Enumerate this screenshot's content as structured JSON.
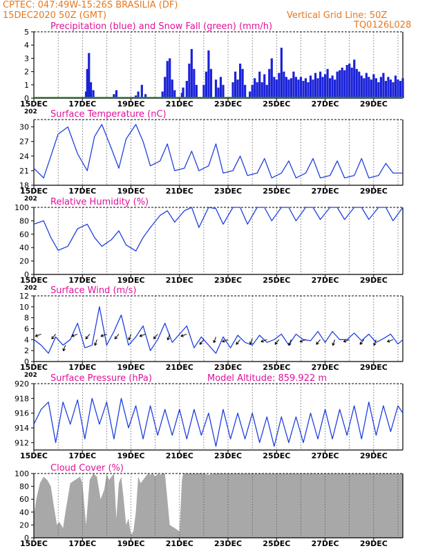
{
  "header": {
    "line1_left": "CPTEC:   047:49W-15:26S   BRASILIA (DF)",
    "line2_left": "15DEC2020 50Z (GMT)",
    "line2_right": "Vertical Grid Line: 50Z",
    "line3_right": "TQ0126L028"
  },
  "colors": {
    "header_text": "#e8771c",
    "panel_title": "#e0109a",
    "series_line": "#1f3fe0",
    "precip_bar": "#1a22d8",
    "snow_bar": "#1a9a1a",
    "cloud_fill": "#a8a8a8"
  },
  "x_axis": {
    "tick_labels": [
      "15DEC",
      "17DEC",
      "19DEC",
      "21DEC",
      "23DEC",
      "25DEC",
      "27DEC",
      "29DEC"
    ],
    "truncated_year": "202"
  },
  "chart_data": [
    {
      "type": "bar",
      "name": "precipitation",
      "title": "Precipitation (blue) and Snow Fall (green) (mm/h)",
      "ylim": [
        0,
        5
      ],
      "yticks": [
        0,
        1,
        2,
        3,
        4,
        5
      ],
      "x": "days since 15DEC 00Z",
      "bars": [
        [
          2.15,
          0.5
        ],
        [
          2.2,
          2.2
        ],
        [
          2.27,
          3.4
        ],
        [
          2.35,
          1.2
        ],
        [
          2.45,
          0.6
        ],
        [
          3.3,
          0.3
        ],
        [
          3.4,
          0.6
        ],
        [
          4.2,
          0.2
        ],
        [
          4.3,
          0.5
        ],
        [
          4.45,
          1.0
        ],
        [
          4.6,
          0.3
        ],
        [
          5.3,
          0.5
        ],
        [
          5.4,
          1.6
        ],
        [
          5.5,
          2.8
        ],
        [
          5.6,
          3.0
        ],
        [
          5.7,
          1.4
        ],
        [
          5.8,
          0.6
        ],
        [
          6.1,
          0.4
        ],
        [
          6.15,
          0.8
        ],
        [
          6.3,
          1.3
        ],
        [
          6.4,
          2.6
        ],
        [
          6.5,
          3.7
        ],
        [
          6.6,
          2.2
        ],
        [
          6.7,
          1.0
        ],
        [
          7.0,
          1.0
        ],
        [
          7.1,
          2.0
        ],
        [
          7.2,
          3.6
        ],
        [
          7.3,
          2.2
        ],
        [
          7.5,
          1.4
        ],
        [
          7.6,
          0.8
        ],
        [
          7.7,
          1.6
        ],
        [
          7.8,
          1.0
        ],
        [
          8.2,
          1.2
        ],
        [
          8.3,
          2.0
        ],
        [
          8.4,
          1.4
        ],
        [
          8.5,
          2.6
        ],
        [
          8.6,
          2.2
        ],
        [
          8.7,
          1.0
        ],
        [
          8.9,
          0.5
        ],
        [
          9.0,
          1.0
        ],
        [
          9.1,
          1.5
        ],
        [
          9.2,
          1.2
        ],
        [
          9.3,
          2.0
        ],
        [
          9.4,
          1.2
        ],
        [
          9.5,
          1.8
        ],
        [
          9.6,
          1.0
        ],
        [
          9.7,
          2.2
        ],
        [
          9.8,
          3.0
        ],
        [
          9.9,
          1.6
        ],
        [
          10.0,
          1.4
        ],
        [
          10.1,
          1.9
        ],
        [
          10.2,
          3.8
        ],
        [
          10.3,
          2.0
        ],
        [
          10.4,
          1.6
        ],
        [
          10.5,
          1.4
        ],
        [
          10.6,
          1.5
        ],
        [
          10.7,
          2.0
        ],
        [
          10.8,
          1.6
        ],
        [
          10.9,
          1.4
        ],
        [
          11.0,
          1.6
        ],
        [
          11.1,
          1.3
        ],
        [
          11.2,
          1.5
        ],
        [
          11.3,
          1.2
        ],
        [
          11.4,
          1.7
        ],
        [
          11.5,
          1.4
        ],
        [
          11.6,
          1.9
        ],
        [
          11.7,
          1.5
        ],
        [
          11.8,
          2.0
        ],
        [
          11.9,
          1.6
        ],
        [
          12.0,
          1.8
        ],
        [
          12.1,
          2.2
        ],
        [
          12.2,
          1.5
        ],
        [
          12.3,
          1.7
        ],
        [
          12.4,
          1.4
        ],
        [
          12.5,
          2.0
        ],
        [
          12.6,
          2.1
        ],
        [
          12.7,
          2.3
        ],
        [
          12.8,
          2.1
        ],
        [
          12.9,
          2.5
        ],
        [
          13.0,
          2.6
        ],
        [
          13.1,
          2.3
        ],
        [
          13.2,
          2.9
        ],
        [
          13.3,
          2.2
        ],
        [
          13.4,
          2.0
        ],
        [
          13.5,
          1.7
        ],
        [
          13.6,
          1.5
        ],
        [
          13.7,
          1.9
        ],
        [
          13.8,
          1.6
        ],
        [
          13.9,
          1.4
        ],
        [
          14.0,
          1.8
        ],
        [
          14.1,
          1.5
        ],
        [
          14.2,
          1.2
        ],
        [
          14.3,
          1.6
        ],
        [
          14.4,
          1.9
        ],
        [
          14.5,
          1.3
        ],
        [
          14.6,
          1.6
        ],
        [
          14.7,
          1.4
        ],
        [
          14.8,
          1.2
        ],
        [
          14.9,
          1.7
        ],
        [
          15.0,
          1.4
        ],
        [
          15.1,
          1.3
        ],
        [
          15.2,
          1.5
        ]
      ],
      "snow": "near zero across period"
    },
    {
      "type": "line",
      "name": "temperature",
      "title": "Surface Temperature (nC)",
      "ylim": [
        18,
        31.5
      ],
      "yticks": [
        18,
        21,
        24,
        27,
        30
      ],
      "x": [
        0.0,
        0.4,
        0.7,
        1.0,
        1.4,
        1.8,
        2.2,
        2.5,
        2.8,
        3.2,
        3.5,
        3.8,
        4.2,
        4.5,
        4.8,
        5.2,
        5.5,
        5.8,
        6.2,
        6.5,
        6.8,
        7.2,
        7.5,
        7.8,
        8.2,
        8.5,
        8.8,
        9.2,
        9.5,
        9.8,
        10.2,
        10.5,
        10.8,
        11.2,
        11.5,
        11.8,
        12.2,
        12.5,
        12.8,
        13.2,
        13.5,
        13.8,
        14.2,
        14.5,
        14.8,
        15.2
      ],
      "values": [
        21.5,
        19.5,
        24.0,
        28.5,
        30.0,
        24.5,
        21.0,
        28.0,
        30.5,
        25.5,
        21.5,
        27.5,
        30.5,
        27.0,
        22.0,
        23.0,
        26.5,
        21.0,
        21.5,
        25.0,
        21.0,
        22.0,
        26.5,
        20.5,
        21.0,
        24.0,
        20.0,
        20.5,
        23.5,
        19.5,
        20.5,
        23.0,
        19.5,
        20.5,
        23.5,
        19.5,
        20.0,
        23.0,
        19.5,
        20.0,
        23.5,
        19.5,
        20.0,
        22.5,
        20.5,
        20.5
      ]
    },
    {
      "type": "line",
      "name": "humidity",
      "title": "Relative Humidity (%)",
      "ylim": [
        0,
        100
      ],
      "yticks": [
        0,
        20,
        40,
        60,
        80,
        100
      ],
      "x": [
        0.0,
        0.4,
        0.7,
        1.0,
        1.4,
        1.8,
        2.2,
        2.5,
        2.8,
        3.2,
        3.5,
        3.8,
        4.2,
        4.5,
        4.8,
        5.2,
        5.5,
        5.8,
        6.2,
        6.5,
        6.8,
        7.2,
        7.5,
        7.8,
        8.2,
        8.5,
        8.8,
        9.2,
        9.5,
        9.8,
        10.2,
        10.5,
        10.8,
        11.2,
        11.5,
        11.8,
        12.2,
        12.5,
        12.8,
        13.2,
        13.5,
        13.8,
        14.2,
        14.5,
        14.8,
        15.2
      ],
      "values": [
        75,
        80,
        55,
        36,
        42,
        68,
        75,
        55,
        42,
        52,
        65,
        44,
        35,
        55,
        70,
        88,
        95,
        78,
        95,
        100,
        70,
        100,
        98,
        75,
        100,
        100,
        75,
        100,
        100,
        80,
        100,
        100,
        80,
        100,
        100,
        82,
        100,
        100,
        82,
        100,
        100,
        82,
        100,
        100,
        80,
        100
      ]
    },
    {
      "type": "line",
      "name": "wind",
      "title": "Surface Wind (m/s)",
      "ylim": [
        0,
        12
      ],
      "yticks": [
        0,
        2,
        4,
        6,
        8,
        10,
        12
      ],
      "x": [
        0.0,
        0.3,
        0.6,
        0.9,
        1.2,
        1.5,
        1.8,
        2.1,
        2.4,
        2.7,
        3.0,
        3.3,
        3.6,
        3.9,
        4.2,
        4.5,
        4.8,
        5.1,
        5.4,
        5.7,
        6.0,
        6.3,
        6.6,
        6.9,
        7.2,
        7.5,
        7.8,
        8.1,
        8.4,
        8.7,
        9.0,
        9.3,
        9.6,
        9.9,
        10.2,
        10.5,
        10.8,
        11.1,
        11.4,
        11.7,
        12.0,
        12.3,
        12.6,
        12.9,
        13.2,
        13.5,
        13.8,
        14.1,
        14.4,
        14.7,
        15.0,
        15.2
      ],
      "values": [
        4.0,
        3.0,
        1.5,
        4.5,
        3.0,
        4.0,
        7.0,
        2.5,
        3.0,
        10.0,
        3.0,
        5.5,
        8.5,
        3.0,
        4.5,
        6.5,
        2.0,
        4.0,
        7.0,
        3.5,
        5.0,
        6.5,
        2.5,
        4.5,
        3.0,
        1.5,
        4.5,
        2.5,
        4.8,
        3.5,
        3.0,
        4.8,
        3.5,
        4.0,
        5.0,
        3.0,
        5.0,
        4.0,
        3.8,
        5.5,
        3.5,
        5.5,
        4.0,
        4.0,
        5.2,
        3.8,
        5.0,
        3.5,
        4.2,
        5.0,
        3.2,
        4.0
      ],
      "arrows": [
        [
          0.3,
          5.0
        ],
        [
          0.9,
          5.0
        ],
        [
          1.3,
          3.0
        ],
        [
          1.8,
          5.0
        ],
        [
          2.3,
          5.0
        ],
        [
          2.6,
          4.0
        ],
        [
          3.0,
          5.0
        ],
        [
          3.5,
          5.0
        ],
        [
          4.0,
          5.0
        ],
        [
          4.6,
          5.0
        ],
        [
          5.1,
          5.0
        ],
        [
          5.6,
          5.0
        ],
        [
          6.3,
          5.0
        ],
        [
          7.0,
          4.0
        ],
        [
          7.5,
          4.5
        ],
        [
          8.0,
          4.0
        ],
        [
          8.5,
          4.0
        ],
        [
          9.0,
          4.2
        ],
        [
          9.6,
          4.0
        ],
        [
          10.1,
          4.0
        ],
        [
          10.6,
          4.0
        ],
        [
          11.2,
          4.0
        ],
        [
          11.8,
          4.0
        ],
        [
          12.4,
          4.0
        ],
        [
          13.0,
          4.0
        ],
        [
          13.6,
          4.0
        ],
        [
          14.1,
          4.0
        ],
        [
          14.8,
          4.0
        ]
      ]
    },
    {
      "type": "line",
      "name": "pressure",
      "title": "Surface Pressure (hPa)",
      "annotation": "Model Altitude: 859.922 m",
      "ylim": [
        911,
        920
      ],
      "yticks": [
        912,
        914,
        916,
        918,
        920
      ],
      "x": [
        0.0,
        0.3,
        0.6,
        0.9,
        1.2,
        1.5,
        1.8,
        2.1,
        2.4,
        2.7,
        3.0,
        3.3,
        3.6,
        3.9,
        4.2,
        4.5,
        4.8,
        5.1,
        5.4,
        5.7,
        6.0,
        6.3,
        6.6,
        6.9,
        7.2,
        7.5,
        7.8,
        8.1,
        8.4,
        8.7,
        9.0,
        9.3,
        9.6,
        9.9,
        10.2,
        10.5,
        10.8,
        11.1,
        11.4,
        11.7,
        12.0,
        12.3,
        12.6,
        12.9,
        13.2,
        13.5,
        13.8,
        14.1,
        14.4,
        14.7,
        15.0,
        15.2
      ],
      "values": [
        914.5,
        916.5,
        917.5,
        912.0,
        917.5,
        914.5,
        917.8,
        912.5,
        918.0,
        914.5,
        917.5,
        912.5,
        918.0,
        914.0,
        917.0,
        912.5,
        917.0,
        913.0,
        916.5,
        913.0,
        916.5,
        912.5,
        916.5,
        913.0,
        916.0,
        911.5,
        916.5,
        912.5,
        916.0,
        912.5,
        916.0,
        912.0,
        915.5,
        911.5,
        915.5,
        912.0,
        915.5,
        912.0,
        916.0,
        912.5,
        916.5,
        912.5,
        916.5,
        913.0,
        917.0,
        912.5,
        917.5,
        913.0,
        917.0,
        913.5,
        917.0,
        916.0
      ]
    },
    {
      "type": "area",
      "name": "cloud_cover",
      "title": "Cloud Cover (%)",
      "ylim": [
        0,
        100
      ],
      "yticks": [
        0,
        20,
        40,
        60,
        80,
        100
      ],
      "x": [
        0.0,
        0.1,
        0.25,
        0.4,
        0.55,
        0.7,
        0.8,
        0.95,
        1.05,
        1.2,
        1.3,
        1.5,
        1.7,
        1.9,
        2.0,
        2.15,
        2.3,
        2.45,
        2.6,
        2.75,
        2.9,
        3.0,
        3.1,
        3.2,
        3.3,
        3.4,
        3.5,
        3.6,
        3.7,
        3.8,
        3.9,
        4.0,
        4.1,
        4.2,
        4.3,
        4.4,
        4.5,
        4.6,
        4.7,
        4.8,
        4.9,
        5.0,
        5.1,
        5.2,
        5.3,
        5.4,
        5.5,
        5.6,
        5.8,
        6.0,
        6.1,
        6.15,
        6.2,
        6.4,
        6.6,
        6.8,
        7.0,
        7.2,
        7.4,
        7.6,
        8.0,
        9.0,
        10.0,
        11.0,
        12.0,
        13.0,
        14.0,
        15.2
      ],
      "values": [
        35,
        60,
        85,
        95,
        90,
        80,
        55,
        20,
        25,
        15,
        40,
        85,
        90,
        95,
        85,
        20,
        90,
        100,
        95,
        60,
        75,
        100,
        90,
        95,
        100,
        30,
        85,
        95,
        60,
        20,
        30,
        5,
        10,
        40,
        95,
        85,
        90,
        95,
        100,
        98,
        100,
        95,
        100,
        98,
        100,
        100,
        60,
        20,
        15,
        10,
        90,
        100,
        100,
        100,
        100,
        100,
        100,
        98,
        100,
        100,
        100,
        100,
        100,
        100,
        100,
        100,
        100,
        100
      ]
    }
  ],
  "panel_titles": {
    "precip": "Precipitation (blue) and Snow Fall (green) (mm/h)",
    "temp": "Surface Temperature (nC)",
    "rh": "Relative Humidity (%)",
    "wind": "Surface Wind (m/s)",
    "pres": "Surface Pressure (hPa)",
    "pres_note": "Model Altitude: 859.922 m",
    "cloud": "Cloud Cover (%)"
  }
}
